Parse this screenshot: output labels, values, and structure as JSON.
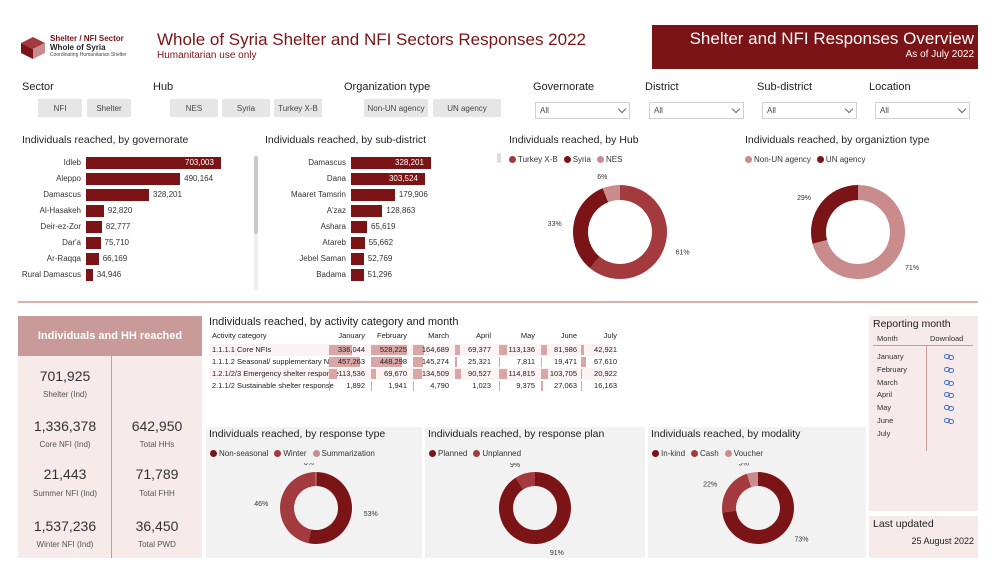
{
  "header": {
    "logo_line1": "Shelter / NFI Sector",
    "logo_line2": "Whole of Syria",
    "logo_line3": "Coordinating Humanitarian Shelter",
    "title": "Whole of Syria Shelter and NFI Sectors Responses 2022",
    "subtitle": "Humanitarian use only",
    "overview_title": "Shelter and NFI Responses Overview",
    "overview_date": "As of July 2022"
  },
  "filters": {
    "sector": {
      "label": "Sector",
      "options": [
        "NFI",
        "Shelter"
      ]
    },
    "hub": {
      "label": "Hub",
      "options": [
        "NES",
        "Syria",
        "Turkey X-B"
      ]
    },
    "org": {
      "label": "Organization type",
      "options": [
        "Non-UN agency",
        "UN agency"
      ]
    },
    "governorate": {
      "label": "Governorate",
      "value": "All"
    },
    "district": {
      "label": "District",
      "value": "All"
    },
    "subdistrict": {
      "label": "Sub-district",
      "value": "All"
    },
    "location": {
      "label": "Location",
      "value": "All"
    }
  },
  "colors": {
    "dark": "#7b1416",
    "medium": "#a33b3e",
    "light": "#c98b8b"
  },
  "chart_data": [
    {
      "type": "bar",
      "title": "Individuals reached, by governorate",
      "categories": [
        "Idleb",
        "Aleppo",
        "Damascus",
        "Al-Hasakeh",
        "Deir-ez-Zor",
        "Dar'a",
        "Ar-Raqqa",
        "Rural Damascus"
      ],
      "labels": [
        "703,003",
        "490,164",
        "328,201",
        "92,820",
        "82,777",
        "75,710",
        "66,169",
        "34,946"
      ],
      "values": [
        703003,
        490164,
        328201,
        92820,
        82777,
        75710,
        66169,
        34946
      ]
    },
    {
      "type": "bar",
      "title": "Individuals reached, by sub-district",
      "categories": [
        "Damascus",
        "Dana",
        "Maaret Tamsrin",
        "A'zaz",
        "Ashara",
        "Atareb",
        "Jebel Saman",
        "Badama"
      ],
      "labels": [
        "328,201",
        "303,524",
        "179,906",
        "128,863",
        "65,619",
        "55,662",
        "52,769",
        "51,296"
      ],
      "values": [
        328201,
        303524,
        179906,
        128863,
        65619,
        55662,
        52769,
        51296
      ]
    },
    {
      "type": "pie",
      "title": "Individuals reached, by Hub",
      "legend": [
        "Turkey X-B",
        "Syria",
        "NES"
      ],
      "values": [
        61,
        33,
        6
      ],
      "labels": [
        "61%",
        "33%",
        "6%"
      ]
    },
    {
      "type": "pie",
      "title": "Individuals reached, by organiztion type",
      "legend": [
        "Non-UN agency",
        "UN agency"
      ],
      "values": [
        71,
        29
      ],
      "labels": [
        "71%",
        "29%"
      ]
    },
    {
      "type": "table",
      "title": "Individuals reached, by activity category and month",
      "columns": [
        "Activity category",
        "January",
        "February",
        "March",
        "April",
        "May",
        "June",
        "July"
      ],
      "rows": [
        {
          "cat": "1.1.1.1 Core NFIs",
          "cells": [
            "336,044",
            "528,225",
            "164,689",
            "69,377",
            "113,136",
            "81,986",
            "42,921"
          ],
          "values": [
            336044,
            528225,
            164689,
            69377,
            113136,
            81986,
            42921
          ]
        },
        {
          "cat": "1.1.1.2 Seasonal/ supplementary NFIs",
          "cells": [
            "457,263",
            "448,298",
            "145,274",
            "25,321",
            "7,811",
            "19,471",
            "67,610"
          ],
          "values": [
            457263,
            448298,
            145274,
            25321,
            7811,
            19471,
            67610
          ]
        },
        {
          "cat": "1.2.1/2/3 Emergency shelter response",
          "cells": [
            "113,536",
            "69,670",
            "134,509",
            "90,527",
            "114,815",
            "103,705",
            "20,922"
          ],
          "values": [
            113536,
            69670,
            134509,
            90527,
            114815,
            103705,
            20922
          ]
        },
        {
          "cat": "2.1.1/2 Sustainable shelter response",
          "cells": [
            "1,892",
            "1,941",
            "4,790",
            "1,023",
            "9,375",
            "27,063",
            "16,163"
          ],
          "values": [
            1892,
            1941,
            4790,
            1023,
            9375,
            27063,
            16163
          ]
        }
      ]
    },
    {
      "type": "pie",
      "title": "Individuals reached, by response type",
      "legend": [
        "Non-seasonal",
        "Winter",
        "Summarization"
      ],
      "values": [
        53,
        46,
        0
      ],
      "labels": [
        "53%",
        "46%",
        "0%"
      ]
    },
    {
      "type": "pie",
      "title": "Individuals reached, by response plan",
      "legend": [
        "Planned",
        "Unplanned"
      ],
      "values": [
        91,
        9
      ],
      "labels": [
        "91%",
        "9%"
      ]
    },
    {
      "type": "pie",
      "title": "Individuals reached, by modality",
      "legend": [
        "In-kind",
        "Cash",
        "Voucher"
      ],
      "values": [
        73,
        22,
        5
      ],
      "labels": [
        "73%",
        "22%",
        "5%"
      ]
    }
  ],
  "kpis": {
    "title": "Individuals and HH reached",
    "shelter": {
      "value": "701,925",
      "label": "Shelter (Ind)"
    },
    "core_nfi": {
      "value": "1,336,378",
      "label": "Core NFI (Ind)"
    },
    "summer_nfi": {
      "value": "21,443",
      "label": "Summer NFI (Ind)"
    },
    "winter_nfi": {
      "value": "1,537,236",
      "label": "Winter NFI (Ind)"
    },
    "total_hhs": {
      "value": "642,950",
      "label": "Total HHs"
    },
    "total_fhh": {
      "value": "71,789",
      "label": "Total FHH"
    },
    "total_pwd": {
      "value": "36,450",
      "label": "Total PWD"
    }
  },
  "reporting": {
    "title": "Reporting month",
    "col_month": "Month",
    "col_download": "Download",
    "months": [
      "January",
      "February",
      "March",
      "April",
      "May",
      "June",
      "July"
    ],
    "download_months": 6
  },
  "last_updated": {
    "title": "Last updated",
    "date": "25 August 2022"
  }
}
